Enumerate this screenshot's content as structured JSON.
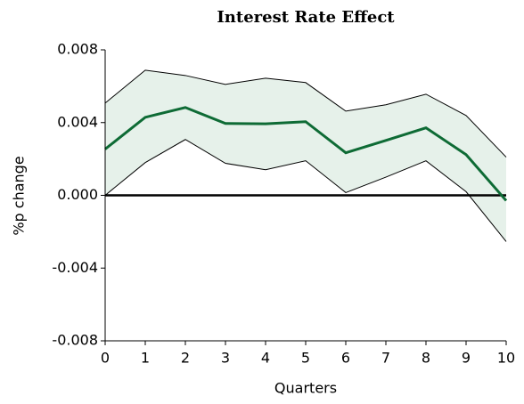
{
  "chart_data": {
    "type": "line",
    "title": "Interest Rate Effect",
    "xlabel": "Quarters",
    "ylabel": "%p change",
    "x": [
      0,
      1,
      2,
      3,
      4,
      5,
      6,
      7,
      8,
      9,
      10
    ],
    "values": [
      0.00254,
      0.00429,
      0.00483,
      0.00395,
      0.00393,
      0.00405,
      0.00234,
      0.00302,
      0.00371,
      0.00224,
      -0.00029
    ],
    "upper": [
      0.00507,
      0.00688,
      0.00659,
      0.0061,
      0.00644,
      0.0062,
      0.00463,
      0.00498,
      0.00556,
      0.00439,
      0.0021
    ],
    "lower": [
      0,
      0.0018,
      0.00307,
      0.00176,
      0.00141,
      0.0019,
      0.00015,
      0.001,
      0.0019,
      0.0002,
      -0.00254
    ],
    "color": "#0e6b35",
    "band_color": "#e6f1ea",
    "band_edge_color": "#000000",
    "xlim": [
      0,
      10
    ],
    "xticks": [
      0,
      1,
      2,
      3,
      4,
      5,
      6,
      7,
      8,
      9,
      10
    ],
    "ylim": [
      -0.008,
      0.008
    ],
    "yticks": [
      -0.008,
      -0.004,
      {
        "value": 0,
        "label": "0.000"
      },
      0.004,
      0.008
    ],
    "zero_line": true
  }
}
